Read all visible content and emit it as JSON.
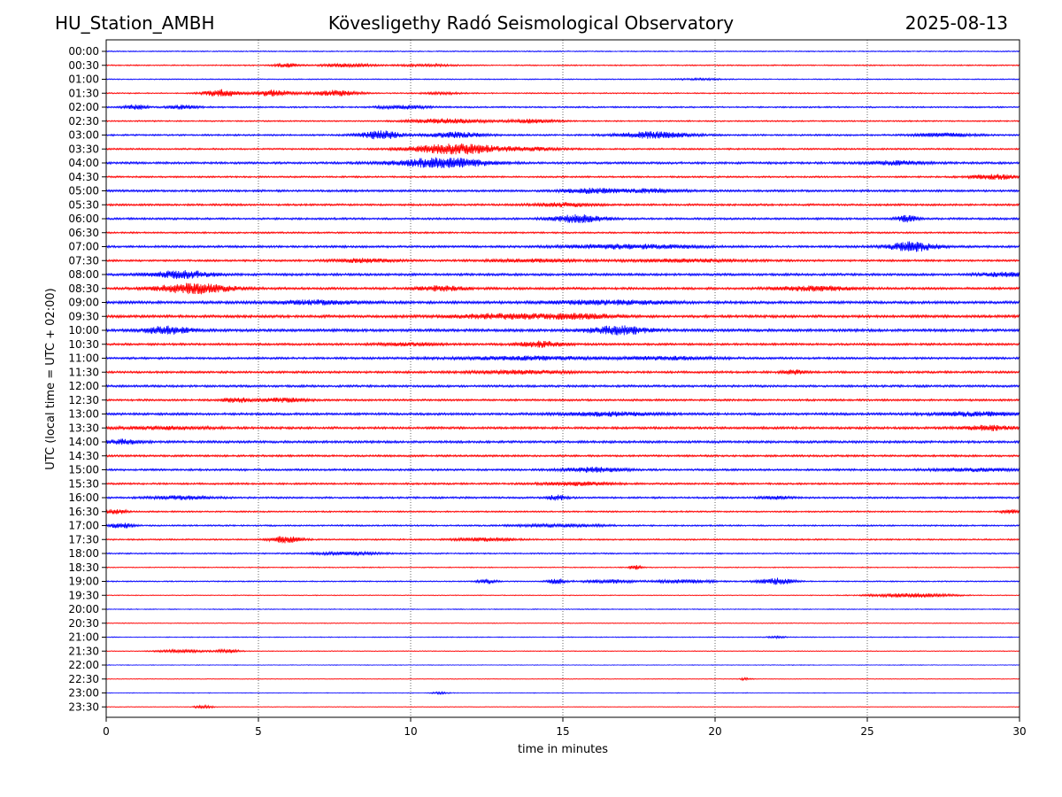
{
  "header": {
    "station": "HU_Station_AMBH",
    "title": "Kövesligethy Radó Seismological Observatory",
    "date": "2025-08-13"
  },
  "chart_data": {
    "type": "line",
    "subtype": "helicorder",
    "xlabel": "time in minutes",
    "ylabel": "UTC (local time = UTC + 02:00)",
    "xlim": [
      0,
      30
    ],
    "x_ticks": [
      0,
      5,
      10,
      15,
      20,
      25,
      30
    ],
    "grid": "vertical dotted lines every 5 minutes",
    "trace_colors": [
      "#0000ff",
      "#ff0000"
    ],
    "rows": [
      {
        "label": "00:00",
        "color": "#0000ff",
        "base": 0.6,
        "events": []
      },
      {
        "label": "00:30",
        "color": "#ff0000",
        "base": 0.7,
        "events": [
          [
            5.9,
            0.4,
            2.2
          ],
          [
            7.9,
            0.8,
            2.0
          ],
          [
            10.5,
            1.0,
            1.0
          ]
        ]
      },
      {
        "label": "01:00",
        "color": "#0000ff",
        "base": 0.6,
        "events": [
          [
            19.5,
            0.8,
            0.8
          ]
        ]
      },
      {
        "label": "01:30",
        "color": "#ff0000",
        "base": 0.7,
        "events": [
          [
            3.8,
            0.6,
            4.0
          ],
          [
            5.5,
            0.6,
            3.5
          ],
          [
            7.5,
            0.8,
            3.0
          ],
          [
            11.0,
            0.7,
            1.0
          ]
        ]
      },
      {
        "label": "02:00",
        "color": "#0000ff",
        "base": 0.9,
        "events": [
          [
            1.0,
            0.4,
            2.5
          ],
          [
            2.5,
            0.5,
            2.0
          ],
          [
            9.8,
            0.8,
            2.0
          ]
        ]
      },
      {
        "label": "02:30",
        "color": "#ff0000",
        "base": 0.8,
        "events": [
          [
            11.2,
            1.2,
            2.5
          ],
          [
            14.0,
            0.8,
            2.0
          ]
        ]
      },
      {
        "label": "03:00",
        "color": "#0000ff",
        "base": 1.0,
        "events": [
          [
            9.0,
            0.7,
            4.5
          ],
          [
            11.5,
            0.9,
            3.0
          ],
          [
            18.0,
            1.2,
            3.5
          ],
          [
            27.5,
            1.0,
            2.0
          ]
        ]
      },
      {
        "label": "03:30",
        "color": "#ff0000",
        "base": 1.0,
        "events": [
          [
            11.5,
            1.5,
            5.5
          ],
          [
            14.0,
            1.0,
            1.5
          ]
        ]
      },
      {
        "label": "04:00",
        "color": "#0000ff",
        "base": 1.3,
        "events": [
          [
            11.0,
            1.5,
            5.5
          ],
          [
            26.0,
            1.0,
            2.0
          ]
        ]
      },
      {
        "label": "04:30",
        "color": "#ff0000",
        "base": 1.0,
        "events": [
          [
            29.2,
            0.8,
            2.5
          ]
        ]
      },
      {
        "label": "05:00",
        "color": "#0000ff",
        "base": 1.3,
        "events": [
          [
            16.0,
            1.0,
            2.5
          ],
          [
            18.0,
            0.8,
            2.0
          ]
        ]
      },
      {
        "label": "05:30",
        "color": "#ff0000",
        "base": 1.2,
        "events": [
          [
            15.0,
            1.0,
            2.0
          ]
        ]
      },
      {
        "label": "06:00",
        "color": "#0000ff",
        "base": 1.2,
        "events": [
          [
            15.5,
            0.9,
            4.0
          ],
          [
            26.3,
            0.3,
            4.0
          ]
        ]
      },
      {
        "label": "06:30",
        "color": "#ff0000",
        "base": 1.0,
        "events": []
      },
      {
        "label": "07:00",
        "color": "#0000ff",
        "base": 1.3,
        "events": [
          [
            16.5,
            1.5,
            2.0
          ],
          [
            26.5,
            0.8,
            5.0
          ],
          [
            18.5,
            1.2,
            1.5
          ]
        ]
      },
      {
        "label": "07:30",
        "color": "#ff0000",
        "base": 1.2,
        "events": [
          [
            8.5,
            1.0,
            2.0
          ],
          [
            14.0,
            1.5,
            1.5
          ],
          [
            19.0,
            2.0,
            1.5
          ]
        ]
      },
      {
        "label": "08:00",
        "color": "#0000ff",
        "base": 1.4,
        "events": [
          [
            2.5,
            1.0,
            4.0
          ],
          [
            29.5,
            0.8,
            2.0
          ]
        ]
      },
      {
        "label": "08:30",
        "color": "#ff0000",
        "base": 1.4,
        "events": [
          [
            2.9,
            1.2,
            5.5
          ],
          [
            11.0,
            0.8,
            2.5
          ],
          [
            23.3,
            1.2,
            2.5
          ]
        ]
      },
      {
        "label": "09:00",
        "color": "#0000ff",
        "base": 1.6,
        "events": [
          [
            7.0,
            1.5,
            2.0
          ],
          [
            16.5,
            2.0,
            2.0
          ]
        ]
      },
      {
        "label": "09:30",
        "color": "#ff0000",
        "base": 1.6,
        "events": [
          [
            13.0,
            1.5,
            2.5
          ],
          [
            15.5,
            1.2,
            2.5
          ]
        ]
      },
      {
        "label": "10:00",
        "color": "#0000ff",
        "base": 1.6,
        "events": [
          [
            2.0,
            0.8,
            4.0
          ],
          [
            16.8,
            1.0,
            4.5
          ]
        ]
      },
      {
        "label": "10:30",
        "color": "#ff0000",
        "base": 1.3,
        "events": [
          [
            14.3,
            0.8,
            3.0
          ],
          [
            10.0,
            1.0,
            1.5
          ]
        ]
      },
      {
        "label": "11:00",
        "color": "#0000ff",
        "base": 1.3,
        "events": [
          [
            14.0,
            2.5,
            1.8
          ],
          [
            18.5,
            1.5,
            1.5
          ]
        ]
      },
      {
        "label": "11:30",
        "color": "#ff0000",
        "base": 1.3,
        "events": [
          [
            13.5,
            1.5,
            1.8
          ],
          [
            22.6,
            0.4,
            2.0
          ]
        ]
      },
      {
        "label": "12:00",
        "color": "#0000ff",
        "base": 1.3,
        "events": []
      },
      {
        "label": "12:30",
        "color": "#ff0000",
        "base": 1.2,
        "events": [
          [
            4.3,
            0.5,
            2.5
          ],
          [
            5.8,
            0.8,
            2.0
          ]
        ]
      },
      {
        "label": "13:00",
        "color": "#0000ff",
        "base": 1.4,
        "events": [
          [
            16.5,
            1.5,
            2.0
          ],
          [
            28.5,
            1.5,
            2.0
          ]
        ]
      },
      {
        "label": "13:30",
        "color": "#ff0000",
        "base": 1.4,
        "events": [
          [
            29.0,
            0.8,
            2.5
          ],
          [
            2.0,
            1.5,
            1.5
          ]
        ]
      },
      {
        "label": "14:00",
        "color": "#0000ff",
        "base": 1.4,
        "events": [
          [
            0.5,
            0.6,
            2.5
          ]
        ]
      },
      {
        "label": "14:30",
        "color": "#ff0000",
        "base": 1.2,
        "events": []
      },
      {
        "label": "15:00",
        "color": "#0000ff",
        "base": 1.2,
        "events": [
          [
            16.0,
            1.0,
            2.5
          ],
          [
            28.5,
            1.5,
            1.5
          ]
        ]
      },
      {
        "label": "15:30",
        "color": "#ff0000",
        "base": 1.1,
        "events": [
          [
            15.5,
            1.2,
            1.8
          ]
        ]
      },
      {
        "label": "16:00",
        "color": "#0000ff",
        "base": 1.1,
        "events": [
          [
            2.5,
            1.0,
            1.8
          ],
          [
            14.8,
            0.3,
            3.0
          ],
          [
            22.0,
            0.5,
            1.5
          ]
        ]
      },
      {
        "label": "16:30",
        "color": "#ff0000",
        "base": 0.9,
        "events": [
          [
            0.3,
            0.4,
            2.5
          ],
          [
            29.7,
            0.3,
            2.0
          ]
        ]
      },
      {
        "label": "17:00",
        "color": "#0000ff",
        "base": 0.9,
        "events": [
          [
            0.5,
            0.4,
            2.8
          ],
          [
            15.0,
            1.5,
            1.5
          ]
        ]
      },
      {
        "label": "17:30",
        "color": "#ff0000",
        "base": 0.9,
        "events": [
          [
            5.9,
            0.5,
            3.5
          ],
          [
            12.5,
            1.0,
            1.8
          ]
        ]
      },
      {
        "label": "18:00",
        "color": "#0000ff",
        "base": 0.8,
        "events": [
          [
            8.0,
            1.2,
            1.5
          ]
        ]
      },
      {
        "label": "18:30",
        "color": "#ff0000",
        "base": 0.6,
        "events": [
          [
            17.4,
            0.2,
            2.5
          ]
        ]
      },
      {
        "label": "19:00",
        "color": "#0000ff",
        "base": 0.7,
        "events": [
          [
            12.5,
            0.3,
            2.5
          ],
          [
            14.8,
            0.3,
            3.0
          ],
          [
            16.5,
            0.8,
            2.0
          ],
          [
            19.0,
            1.0,
            1.8
          ],
          [
            22.0,
            0.6,
            3.5
          ]
        ]
      },
      {
        "label": "19:30",
        "color": "#ff0000",
        "base": 0.5,
        "events": [
          [
            26.5,
            1.3,
            2.2
          ]
        ]
      },
      {
        "label": "20:00",
        "color": "#0000ff",
        "base": 0.5,
        "events": []
      },
      {
        "label": "20:30",
        "color": "#ff0000",
        "base": 0.5,
        "events": []
      },
      {
        "label": "21:00",
        "color": "#0000ff",
        "base": 0.5,
        "events": [
          [
            22.0,
            0.3,
            1.0
          ]
        ]
      },
      {
        "label": "21:30",
        "color": "#ff0000",
        "base": 0.5,
        "events": [
          [
            2.5,
            0.8,
            1.5
          ],
          [
            4.0,
            0.4,
            1.8
          ]
        ]
      },
      {
        "label": "22:00",
        "color": "#0000ff",
        "base": 0.4,
        "events": []
      },
      {
        "label": "22:30",
        "color": "#ff0000",
        "base": 0.4,
        "events": [
          [
            21.0,
            0.2,
            1.2
          ]
        ]
      },
      {
        "label": "23:00",
        "color": "#0000ff",
        "base": 0.4,
        "events": [
          [
            11.0,
            0.3,
            1.0
          ]
        ]
      },
      {
        "label": "23:30",
        "color": "#ff0000",
        "base": 0.4,
        "events": [
          [
            3.2,
            0.3,
            1.8
          ]
        ]
      }
    ]
  }
}
